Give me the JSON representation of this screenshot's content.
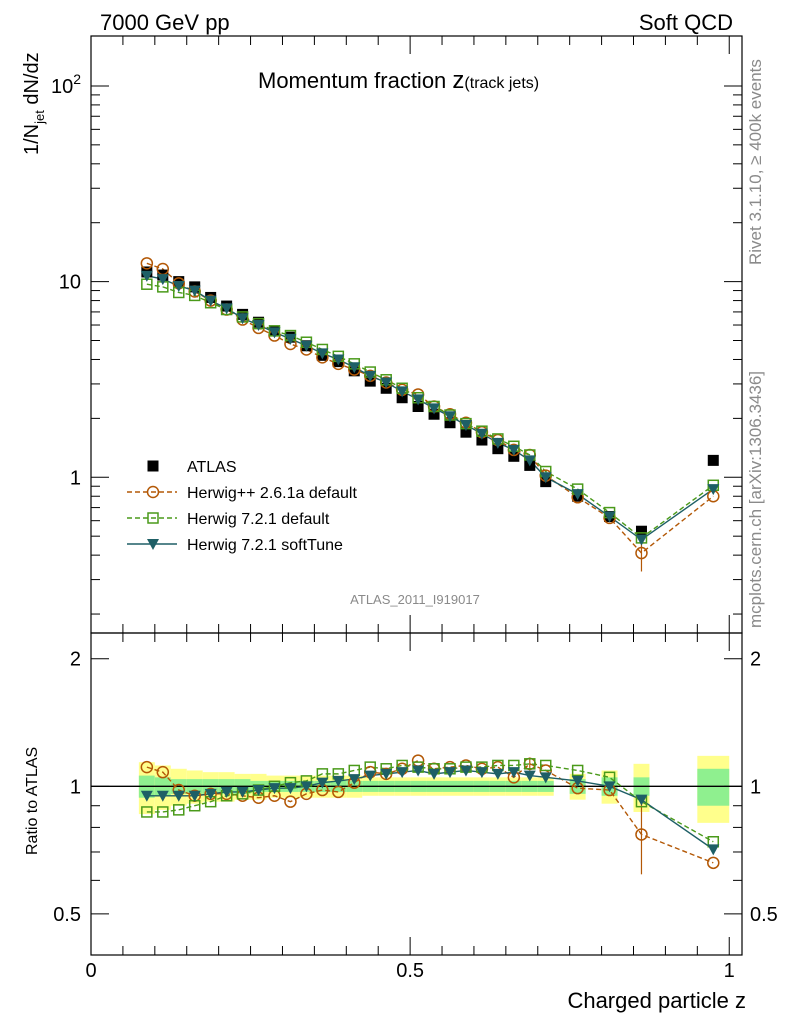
{
  "header": {
    "left": "7000 GeV pp",
    "right": "Soft QCD"
  },
  "side_texts": {
    "rivet": "Rivet 3.1.10, ≥ 400k events",
    "mcplots": "mcplots.cern.ch [arXiv:1306.3436]"
  },
  "colors": {
    "data": "#000000",
    "herwigpp": "#b35806",
    "herwig721": "#4a9a1a",
    "softtune": "#1e5f66",
    "band_inner": "#8ff08f",
    "band_outer": "#ffff8c"
  },
  "chart_data": {
    "type": "scatter",
    "title": "Momentum fraction",
    "title_suffix": "z",
    "title_sub": "(track jets)",
    "ylabel": "1/N_jet dN/dz",
    "ylabel_main": "1/N",
    "ylabel_sub": "jet",
    "ylabel_tail": " dN/dz",
    "xlabel": "Charged particle z",
    "ratio_ylabel": "Ratio to ATLAS",
    "reference": "ATLAS_2011_I919017",
    "xlim": [
      0,
      1.02
    ],
    "ylim": [
      0.16,
      180
    ],
    "ratio_ylim": [
      0.4,
      2.3
    ],
    "x_ticks": [
      "0",
      "0.5",
      "1"
    ],
    "y_ticks": [
      "1",
      "10",
      "10^2"
    ],
    "ratio_ticks": [
      "0.5",
      "1",
      "2"
    ],
    "x": [
      0.0875,
      0.1125,
      0.1375,
      0.1625,
      0.1875,
      0.2125,
      0.2375,
      0.2625,
      0.2875,
      0.3125,
      0.3375,
      0.3625,
      0.3875,
      0.4125,
      0.4375,
      0.4625,
      0.4875,
      0.5125,
      0.5375,
      0.5625,
      0.5875,
      0.6125,
      0.6375,
      0.6625,
      0.6875,
      0.7125,
      0.7625,
      0.8125,
      0.8625,
      0.975
    ],
    "series": [
      {
        "name": "ATLAS",
        "values": [
          11.2,
          10.8,
          10.0,
          9.4,
          8.3,
          7.5,
          6.8,
          6.2,
          5.6,
          5.2,
          4.7,
          4.2,
          3.9,
          3.5,
          3.1,
          2.85,
          2.55,
          2.3,
          2.1,
          1.9,
          1.7,
          1.55,
          1.4,
          1.28,
          1.15,
          0.95,
          0.8,
          0.63,
          0.53,
          1.22
        ]
      },
      {
        "name": "Herwig++ 2.6.1a default",
        "values": [
          12.4,
          11.6,
          9.8,
          8.9,
          8.0,
          7.2,
          6.4,
          5.8,
          5.3,
          4.8,
          4.5,
          4.1,
          3.8,
          3.55,
          3.3,
          3.05,
          2.8,
          2.65,
          2.3,
          2.1,
          1.9,
          1.7,
          1.55,
          1.38,
          1.3,
          1.02,
          0.79,
          0.62,
          0.41,
          0.8
        ]
      },
      {
        "name": "Herwig 7.2.1 default",
        "values": [
          9.7,
          9.4,
          8.8,
          8.5,
          7.8,
          7.2,
          6.6,
          6.1,
          5.6,
          5.3,
          4.9,
          4.5,
          4.15,
          3.8,
          3.45,
          3.15,
          2.85,
          2.55,
          2.3,
          2.08,
          1.88,
          1.72,
          1.57,
          1.44,
          1.3,
          1.07,
          0.87,
          0.66,
          0.49,
          0.91
        ]
      },
      {
        "name": "Herwig 7.2.1 softTune",
        "values": [
          10.7,
          10.3,
          9.5,
          9.0,
          8.0,
          7.3,
          6.5,
          6.0,
          5.5,
          5.1,
          4.7,
          4.3,
          4.0,
          3.65,
          3.3,
          3.05,
          2.75,
          2.5,
          2.25,
          2.05,
          1.85,
          1.67,
          1.5,
          1.38,
          1.22,
          1.0,
          0.82,
          0.63,
          0.48,
          0.87
        ]
      }
    ],
    "ratio_series": [
      {
        "name": "Herwig++ 2.6.1a default",
        "values": [
          1.11,
          1.08,
          0.98,
          0.95,
          0.96,
          0.96,
          0.95,
          0.94,
          0.95,
          0.92,
          0.96,
          0.98,
          0.97,
          1.02,
          1.08,
          1.07,
          1.1,
          1.15,
          1.1,
          1.11,
          1.12,
          1.1,
          1.11,
          1.05,
          1.13,
          1.09,
          0.99,
          0.98,
          0.77,
          0.66
        ]
      },
      {
        "name": "Herwig 7.2.1 default",
        "values": [
          0.87,
          0.87,
          0.88,
          0.9,
          0.92,
          0.95,
          0.96,
          0.98,
          1.0,
          1.02,
          1.03,
          1.07,
          1.07,
          1.09,
          1.11,
          1.1,
          1.12,
          1.11,
          1.1,
          1.1,
          1.11,
          1.11,
          1.12,
          1.12,
          1.13,
          1.12,
          1.09,
          1.05,
          0.92,
          0.74
        ]
      },
      {
        "name": "Herwig 7.2.1 softTune",
        "values": [
          0.95,
          0.95,
          0.95,
          0.95,
          0.96,
          0.97,
          0.97,
          0.98,
          0.99,
          0.99,
          1.0,
          1.02,
          1.03,
          1.04,
          1.06,
          1.07,
          1.08,
          1.09,
          1.07,
          1.08,
          1.09,
          1.08,
          1.07,
          1.08,
          1.06,
          1.05,
          1.03,
          1.0,
          0.93,
          0.71
        ]
      }
    ],
    "ratio_bands": {
      "inner": [
        0.06,
        0.05,
        0.04,
        0.04,
        0.04,
        0.04,
        0.04,
        0.03,
        0.03,
        0.03,
        0.03,
        0.03,
        0.03,
        0.03,
        0.03,
        0.03,
        0.03,
        0.03,
        0.03,
        0.03,
        0.03,
        0.03,
        0.03,
        0.03,
        0.03,
        0.03,
        0.04,
        0.05,
        0.05,
        0.1
      ],
      "outer": [
        0.14,
        0.12,
        0.1,
        0.09,
        0.08,
        0.08,
        0.07,
        0.07,
        0.06,
        0.06,
        0.06,
        0.06,
        0.06,
        0.06,
        0.05,
        0.05,
        0.05,
        0.05,
        0.05,
        0.05,
        0.05,
        0.05,
        0.05,
        0.05,
        0.05,
        0.05,
        0.07,
        0.09,
        0.13,
        0.18
      ]
    },
    "legend_position": "lower-left"
  }
}
